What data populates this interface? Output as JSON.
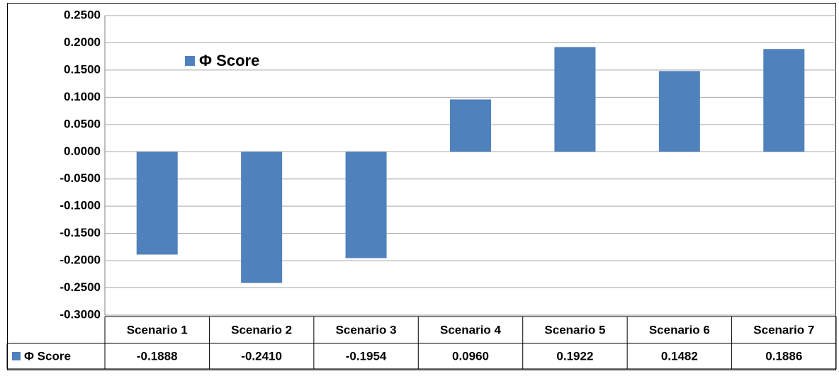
{
  "chart_data": {
    "type": "bar",
    "categories": [
      "Scenario 1",
      "Scenario 2",
      "Scenario 3",
      "Scenario 4",
      "Scenario 5",
      "Scenario 6",
      "Scenario 7"
    ],
    "series": [
      {
        "name": "Φ Score",
        "color": "#4f81bd",
        "values": [
          -0.1888,
          -0.241,
          -0.1954,
          0.096,
          0.1922,
          0.1482,
          0.1886
        ],
        "value_labels": [
          "-0.1888",
          "-0.2410",
          "-0.1954",
          "0.0960",
          "0.1922",
          "0.1482",
          "0.1886"
        ]
      }
    ],
    "ylim": [
      -0.3,
      0.25
    ],
    "yticks": [
      {
        "value": 0.25,
        "label": "0.2500"
      },
      {
        "value": 0.2,
        "label": "0.2000"
      },
      {
        "value": 0.15,
        "label": "0.1500"
      },
      {
        "value": 0.1,
        "label": "0.1000"
      },
      {
        "value": 0.05,
        "label": "0.0500"
      },
      {
        "value": 0,
        "label": "0.0000"
      },
      {
        "value": -0.05,
        "label": "-0.0500"
      },
      {
        "value": -0.1,
        "label": "-0.1000"
      },
      {
        "value": -0.15,
        "label": "-0.1500"
      },
      {
        "value": -0.2,
        "label": "-0.2000"
      },
      {
        "value": -0.25,
        "label": "-0.2500"
      },
      {
        "value": -0.3,
        "label": "-0.3000"
      }
    ],
    "grid": true,
    "legend": "top-left",
    "data_table": true
  }
}
